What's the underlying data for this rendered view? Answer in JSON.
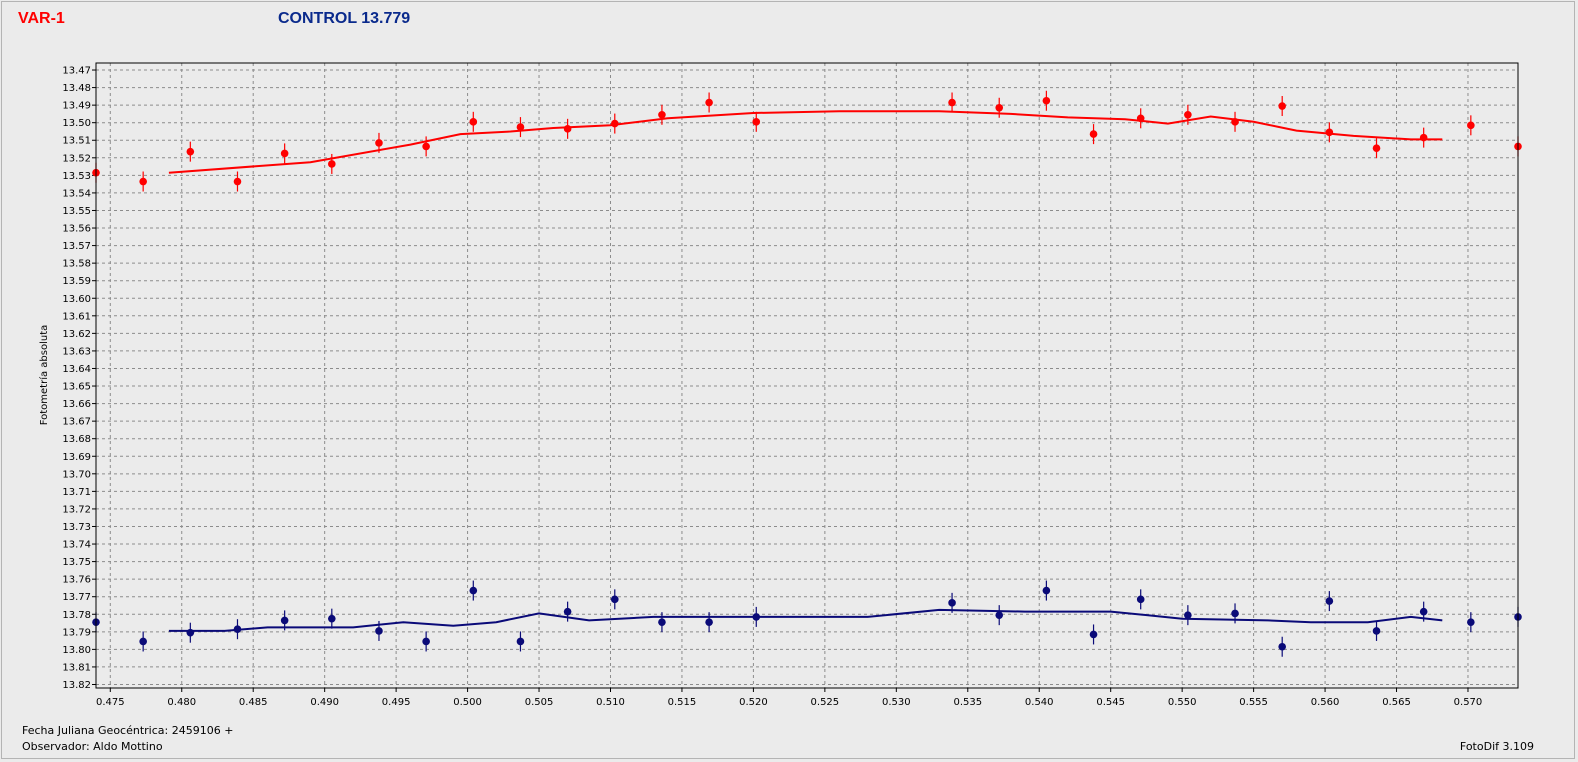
{
  "header": {
    "var_title": "VAR-1",
    "control_title": "CONTROL 13.779"
  },
  "footer": {
    "jd": "Fecha Juliana Geocéntrica: 2459106 +",
    "observer": "Observador: Aldo Mottino",
    "software": "FotoDif 3.109"
  },
  "colors": {
    "var": "#ff0000",
    "control": "#0a0a78",
    "grid": "#8c8c8c"
  },
  "chart_data": {
    "type": "scatter",
    "ylabel": "Fotometría absoluta",
    "xlabel": "",
    "xlim": [
      0.474,
      0.5735
    ],
    "ylim": [
      13.822,
      13.466
    ],
    "y_inverted": true,
    "grid": true,
    "x_ticks": [
      "0.475",
      "0.480",
      "0.485",
      "0.490",
      "0.495",
      "0.500",
      "0.505",
      "0.510",
      "0.515",
      "0.520",
      "0.525",
      "0.530",
      "0.535",
      "0.540",
      "0.545",
      "0.550",
      "0.555",
      "0.560",
      "0.565",
      "0.570"
    ],
    "y_ticks": [
      "13.47",
      "13.48",
      "13.49",
      "13.50",
      "13.51",
      "13.52",
      "13.53",
      "13.54",
      "13.55",
      "13.56",
      "13.57",
      "13.58",
      "13.59",
      "13.60",
      "13.61",
      "13.62",
      "13.63",
      "13.64",
      "13.65",
      "13.66",
      "13.67",
      "13.68",
      "13.69",
      "13.70",
      "13.71",
      "13.72",
      "13.73",
      "13.74",
      "13.75",
      "13.76",
      "13.77",
      "13.78",
      "13.79",
      "13.80",
      "13.81",
      "13.82"
    ],
    "series": [
      {
        "name": "VAR-1",
        "points": [
          {
            "x": 0.474,
            "y": 13.5285
          },
          {
            "x": 0.4773,
            "y": 13.5335
          },
          {
            "x": 0.4806,
            "y": 13.5165
          },
          {
            "x": 0.4839,
            "y": 13.5335
          },
          {
            "x": 0.4872,
            "y": 13.5175
          },
          {
            "x": 0.4905,
            "y": 13.5235
          },
          {
            "x": 0.4938,
            "y": 13.5115
          },
          {
            "x": 0.4971,
            "y": 13.5135
          },
          {
            "x": 0.5004,
            "y": 13.4995
          },
          {
            "x": 0.5037,
            "y": 13.5025
          },
          {
            "x": 0.507,
            "y": 13.5035
          },
          {
            "x": 0.5103,
            "y": 13.5005
          },
          {
            "x": 0.5136,
            "y": 13.4955
          },
          {
            "x": 0.5169,
            "y": 13.4885
          },
          {
            "x": 0.5202,
            "y": 13.4995
          },
          {
            "x": 0.5339,
            "y": 13.4885
          },
          {
            "x": 0.5372,
            "y": 13.4915
          },
          {
            "x": 0.5405,
            "y": 13.4875
          },
          {
            "x": 0.5438,
            "y": 13.5065
          },
          {
            "x": 0.5471,
            "y": 13.4975
          },
          {
            "x": 0.5504,
            "y": 13.4955
          },
          {
            "x": 0.5537,
            "y": 13.4995
          },
          {
            "x": 0.557,
            "y": 13.4905
          },
          {
            "x": 0.5603,
            "y": 13.5055
          },
          {
            "x": 0.5636,
            "y": 13.5145
          },
          {
            "x": 0.5669,
            "y": 13.5085
          },
          {
            "x": 0.5702,
            "y": 13.5015
          },
          {
            "x": 0.5735,
            "y": 13.5135
          }
        ],
        "trend": [
          {
            "x": 0.4791,
            "y": 13.5285
          },
          {
            "x": 0.489,
            "y": 13.5225
          },
          {
            "x": 0.496,
            "y": 13.5125
          },
          {
            "x": 0.4995,
            "y": 13.5065
          },
          {
            "x": 0.503,
            "y": 13.505
          },
          {
            "x": 0.506,
            "y": 13.503
          },
          {
            "x": 0.51,
            "y": 13.5015
          },
          {
            "x": 0.514,
            "y": 13.4975
          },
          {
            "x": 0.52,
            "y": 13.4945
          },
          {
            "x": 0.526,
            "y": 13.4935
          },
          {
            "x": 0.533,
            "y": 13.4935
          },
          {
            "x": 0.538,
            "y": 13.495
          },
          {
            "x": 0.542,
            "y": 13.497
          },
          {
            "x": 0.546,
            "y": 13.498
          },
          {
            "x": 0.549,
            "y": 13.5005
          },
          {
            "x": 0.552,
            "y": 13.4965
          },
          {
            "x": 0.555,
            "y": 13.4995
          },
          {
            "x": 0.558,
            "y": 13.5045
          },
          {
            "x": 0.562,
            "y": 13.5075
          },
          {
            "x": 0.566,
            "y": 13.5095
          },
          {
            "x": 0.5682,
            "y": 13.5095
          }
        ]
      },
      {
        "name": "CONTROL 13.779",
        "points": [
          {
            "x": 0.474,
            "y": 13.7845
          },
          {
            "x": 0.4773,
            "y": 13.7955
          },
          {
            "x": 0.4806,
            "y": 13.7905
          },
          {
            "x": 0.4839,
            "y": 13.7885
          },
          {
            "x": 0.4872,
            "y": 13.7835
          },
          {
            "x": 0.4905,
            "y": 13.7825
          },
          {
            "x": 0.4938,
            "y": 13.7895
          },
          {
            "x": 0.4971,
            "y": 13.7955
          },
          {
            "x": 0.5004,
            "y": 13.7665
          },
          {
            "x": 0.5037,
            "y": 13.7955
          },
          {
            "x": 0.507,
            "y": 13.7785
          },
          {
            "x": 0.5103,
            "y": 13.7715
          },
          {
            "x": 0.5136,
            "y": 13.7845
          },
          {
            "x": 0.5169,
            "y": 13.7845
          },
          {
            "x": 0.5202,
            "y": 13.7815
          },
          {
            "x": 0.5339,
            "y": 13.7735
          },
          {
            "x": 0.5372,
            "y": 13.7805
          },
          {
            "x": 0.5405,
            "y": 13.7665
          },
          {
            "x": 0.5438,
            "y": 13.7915
          },
          {
            "x": 0.5471,
            "y": 13.7715
          },
          {
            "x": 0.5504,
            "y": 13.7805
          },
          {
            "x": 0.5537,
            "y": 13.7795
          },
          {
            "x": 0.557,
            "y": 13.7985
          },
          {
            "x": 0.5603,
            "y": 13.7725
          },
          {
            "x": 0.5636,
            "y": 13.7895
          },
          {
            "x": 0.5669,
            "y": 13.7785
          },
          {
            "x": 0.5702,
            "y": 13.7845
          },
          {
            "x": 0.5735,
            "y": 13.7815
          }
        ],
        "trend": [
          {
            "x": 0.4791,
            "y": 13.7895
          },
          {
            "x": 0.483,
            "y": 13.7895
          },
          {
            "x": 0.486,
            "y": 13.7875
          },
          {
            "x": 0.492,
            "y": 13.7875
          },
          {
            "x": 0.4955,
            "y": 13.7845
          },
          {
            "x": 0.499,
            "y": 13.7865
          },
          {
            "x": 0.502,
            "y": 13.7845
          },
          {
            "x": 0.505,
            "y": 13.7795
          },
          {
            "x": 0.5085,
            "y": 13.7835
          },
          {
            "x": 0.513,
            "y": 13.7815
          },
          {
            "x": 0.52,
            "y": 13.7815
          },
          {
            "x": 0.528,
            "y": 13.7815
          },
          {
            "x": 0.533,
            "y": 13.7775
          },
          {
            "x": 0.539,
            "y": 13.7785
          },
          {
            "x": 0.545,
            "y": 13.7785
          },
          {
            "x": 0.55,
            "y": 13.7825
          },
          {
            "x": 0.556,
            "y": 13.7835
          },
          {
            "x": 0.559,
            "y": 13.7845
          },
          {
            "x": 0.563,
            "y": 13.7845
          },
          {
            "x": 0.566,
            "y": 13.7815
          },
          {
            "x": 0.5682,
            "y": 13.7835
          }
        ]
      }
    ]
  }
}
